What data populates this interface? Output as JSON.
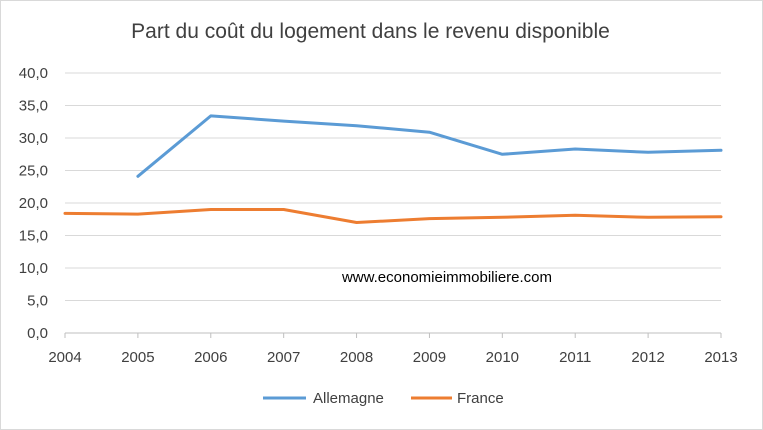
{
  "chart_data": {
    "type": "line",
    "title": "Part du coût du logement dans le revenu disponible",
    "x": [
      "2004",
      "2005",
      "2006",
      "2007",
      "2008",
      "2009",
      "2010",
      "2011",
      "2012",
      "2013"
    ],
    "ylim": [
      0,
      40
    ],
    "yticks": [
      "0,0",
      "5,0",
      "10,0",
      "15,0",
      "20,0",
      "25,0",
      "30,0",
      "35,0",
      "40,0"
    ],
    "grid": true,
    "legend_position": "bottom",
    "annotation": "www.economieimmobiliere.com",
    "series": [
      {
        "name": "Allemagne",
        "color": "#5b9bd5",
        "values": [
          null,
          24.1,
          33.4,
          32.6,
          31.9,
          30.9,
          27.5,
          28.3,
          27.8,
          28.1
        ]
      },
      {
        "name": "France",
        "color": "#ed7d31",
        "values": [
          18.4,
          18.3,
          19.0,
          19.0,
          17.0,
          17.6,
          17.8,
          18.1,
          17.8,
          17.9
        ]
      }
    ]
  }
}
